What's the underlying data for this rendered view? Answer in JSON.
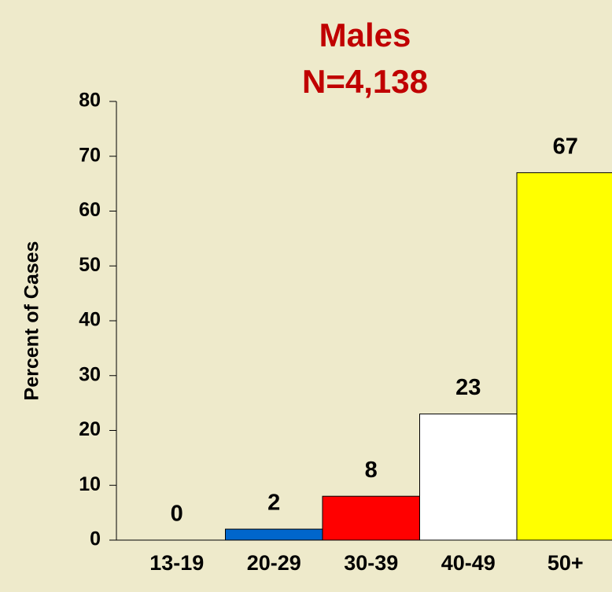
{
  "chart_data": {
    "type": "bar",
    "title": "Males",
    "subtitle": "N=4,138",
    "y_label": "Percent of Cases",
    "categories": [
      "13-19",
      "20-29",
      "30-39",
      "40-49",
      "50+"
    ],
    "values": [
      0,
      2,
      8,
      23,
      67
    ],
    "colors": [
      null,
      "#0066cc",
      "#ff0000",
      "#ffffff",
      "#ffff00"
    ],
    "ylim": [
      0,
      80
    ],
    "yticks": [
      0,
      10,
      20,
      30,
      40,
      50,
      60,
      70,
      80
    ]
  }
}
